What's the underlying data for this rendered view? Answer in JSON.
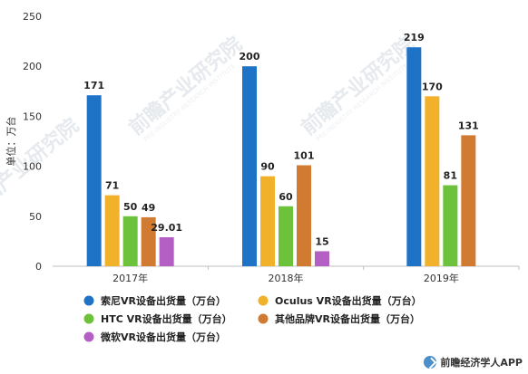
{
  "chart_data": {
    "type": "bar",
    "ylabel": "单位：万台",
    "ylim": [
      0,
      250
    ],
    "yticks": [
      0,
      50,
      100,
      150,
      200,
      250
    ],
    "categories": [
      "2017年",
      "2018年",
      "2019年"
    ],
    "grid": false,
    "legend_position": "bottom",
    "series": [
      {
        "name": "索尼VR设备出货量（万台）",
        "color": "#1f73c6",
        "values": [
          171,
          200,
          219
        ],
        "labels": [
          "171",
          "200",
          "219"
        ]
      },
      {
        "name": "Oculus VR设备出货量（万台）",
        "color": "#f2b12b",
        "values": [
          71,
          90,
          170
        ],
        "labels": [
          "71",
          "90",
          "170"
        ]
      },
      {
        "name": "HTC VR设备出货量（万台）",
        "color": "#6dc23b",
        "values": [
          50,
          60,
          81
        ],
        "labels": [
          "50",
          "60",
          "81"
        ]
      },
      {
        "name": "其他品牌VR设备出货量（万台）",
        "color": "#d07a32",
        "values": [
          49,
          101,
          131
        ],
        "labels": [
          "49",
          "101",
          "131"
        ]
      },
      {
        "name": "微软VR设备出货量（万台）",
        "color": "#b45fc4",
        "values": [
          29.01,
          15,
          null
        ],
        "labels": [
          "29.01",
          "15",
          null
        ]
      }
    ]
  },
  "watermark": {
    "text": "前瞻产业研究院",
    "sub": "PRE-INDUSTRY RESEARCH INSTITUTE"
  },
  "footer": {
    "brand": "前瞻经济学人APP",
    "icon": "qianzhan-logo-icon"
  }
}
